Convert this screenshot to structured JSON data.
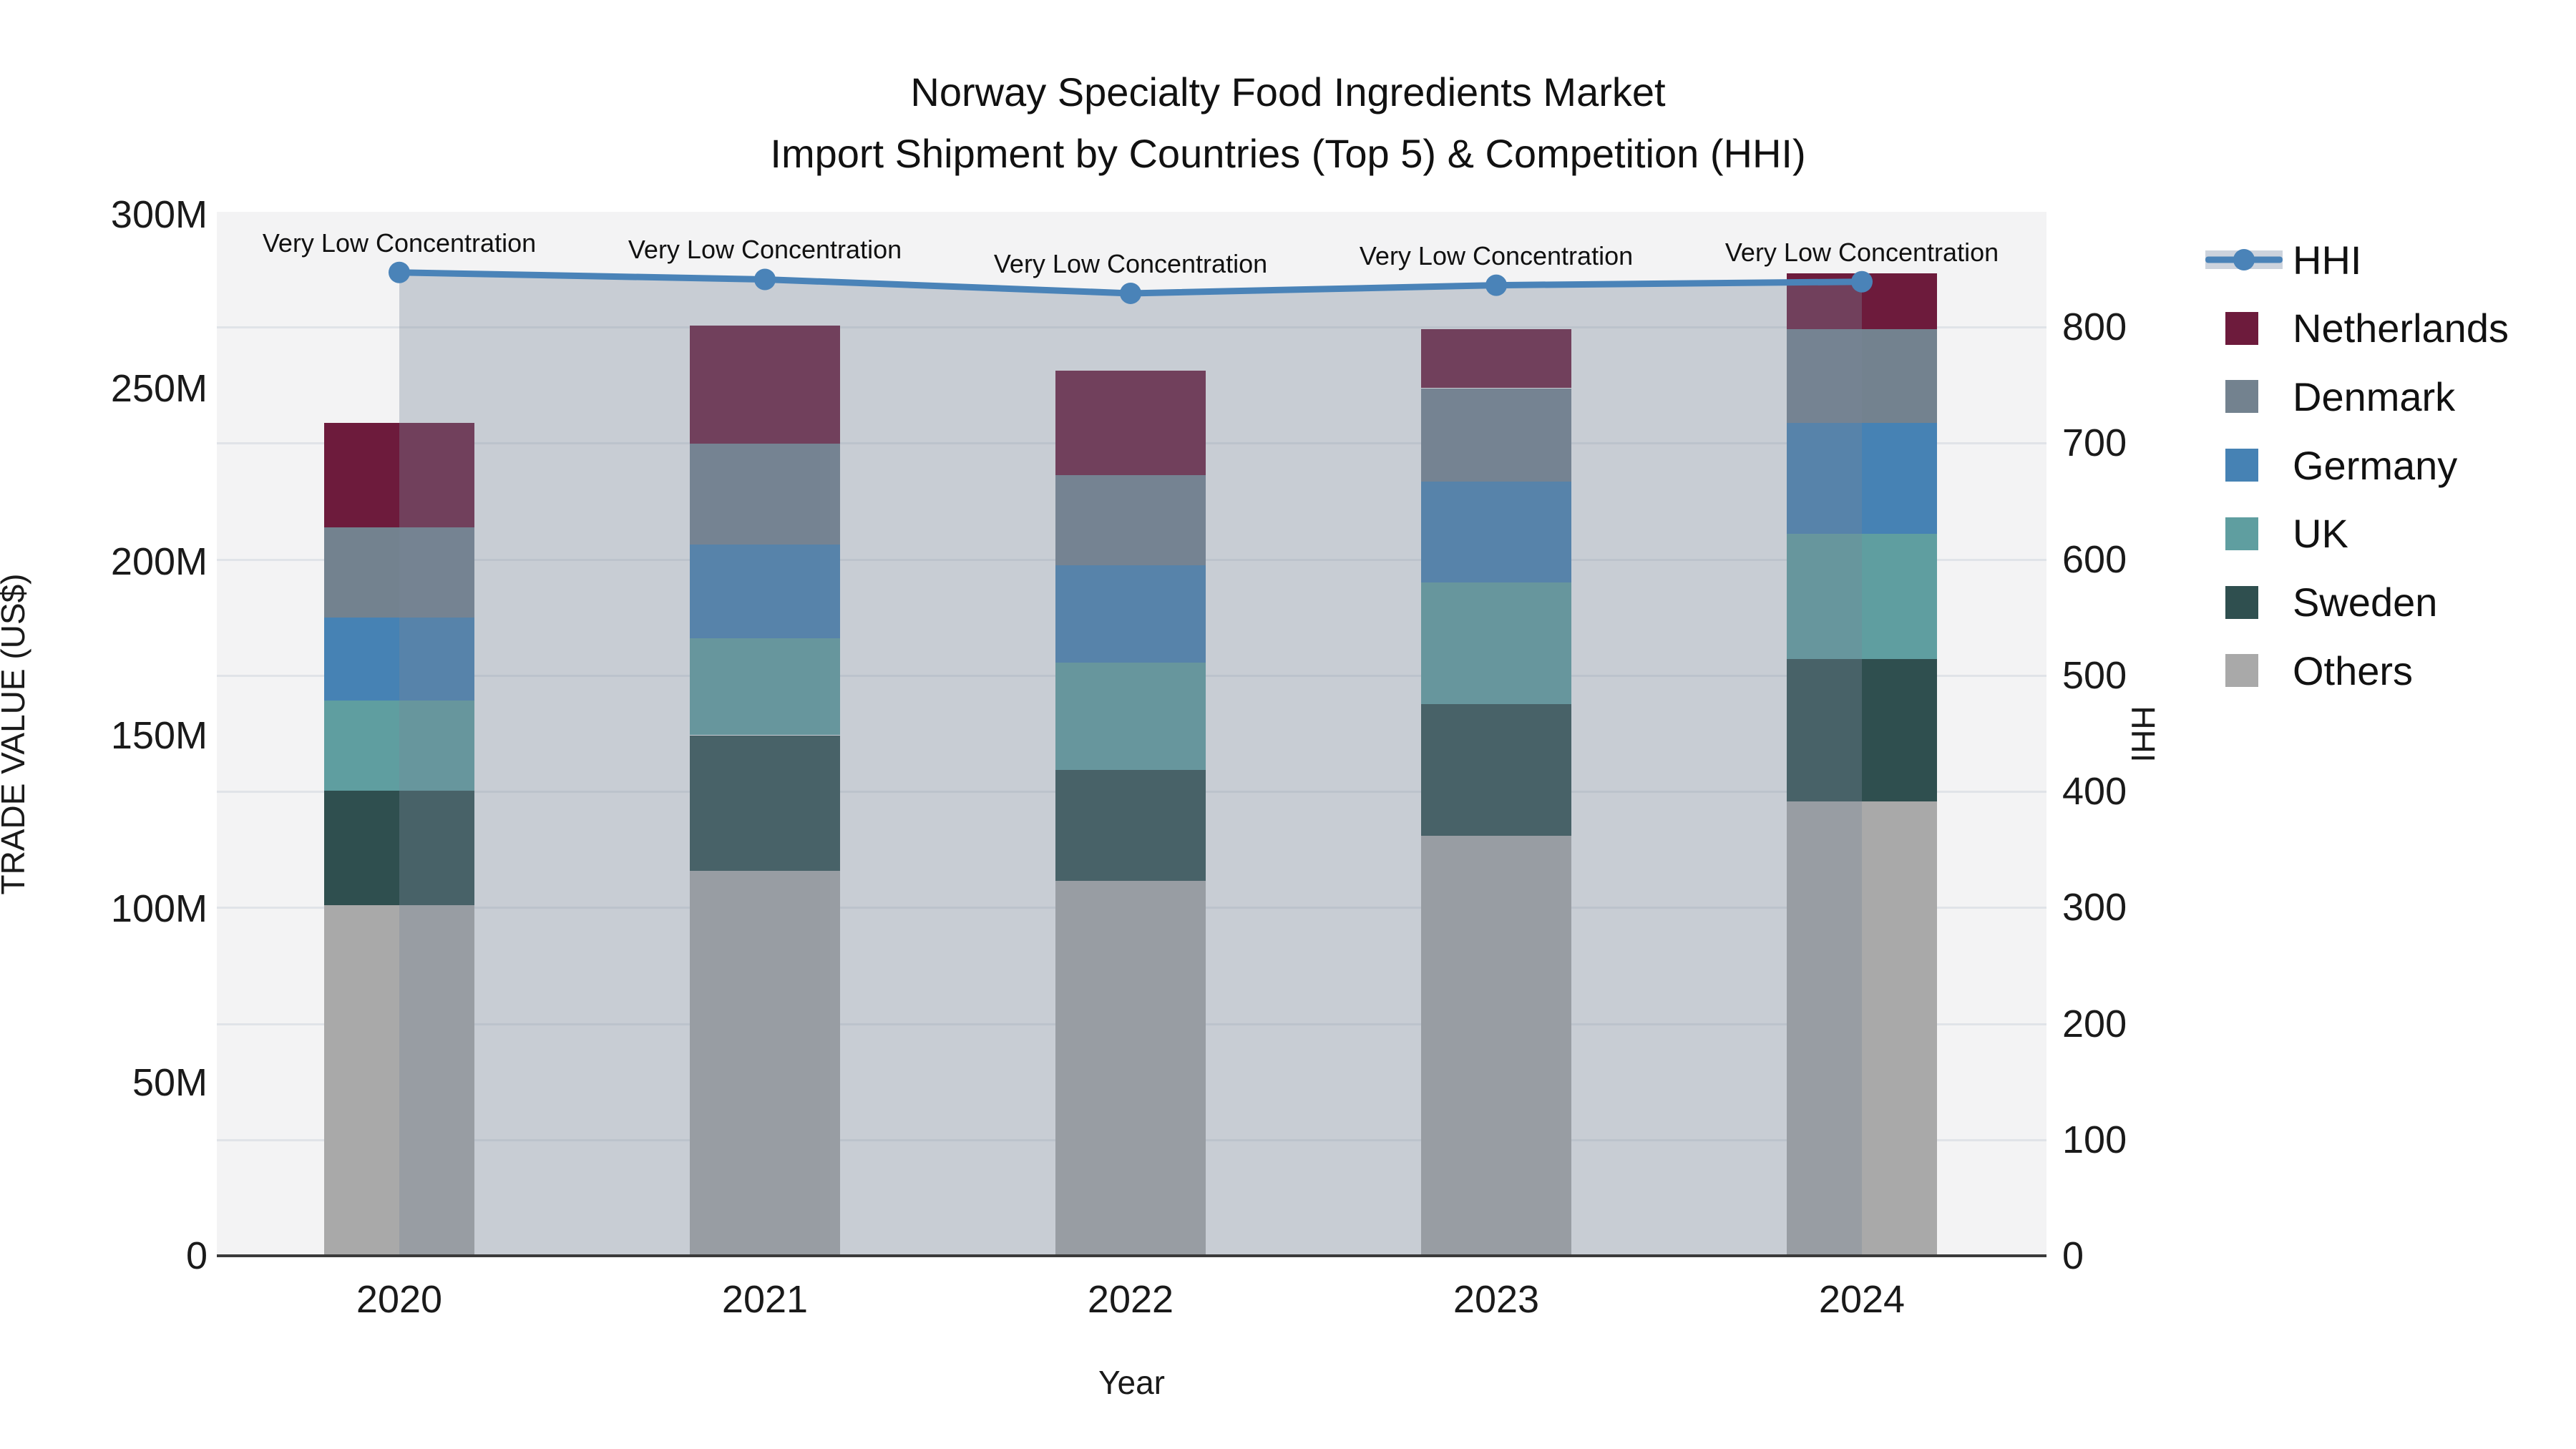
{
  "title": {
    "line1": "Norway Specialty Food Ingredients Market",
    "line2": "Import Shipment by Countries (Top 5) & Competition (HHI)"
  },
  "chart_data": {
    "type": "combo_stacked_bar_line",
    "categories": [
      "2020",
      "2021",
      "2022",
      "2023",
      "2024"
    ],
    "xlabel": "Year",
    "ylabel_left": "TRADE VALUE (US$)",
    "ylabel_right": "HHI",
    "ylim_left_millions": [
      0,
      300
    ],
    "ylim_right": [
      0,
      900
    ],
    "grid": "horizontal, every 100 HHI units",
    "legend_position": "right",
    "y_left_ticks": [
      "0",
      "50M",
      "100M",
      "150M",
      "200M",
      "250M",
      "300M"
    ],
    "y_left_tick_values_millions": [
      0,
      50,
      100,
      150,
      200,
      250,
      300
    ],
    "y_right_ticks": [
      "0",
      "100",
      "200",
      "300",
      "400",
      "500",
      "600",
      "700",
      "800"
    ],
    "y_right_tick_values": [
      0,
      100,
      200,
      300,
      400,
      500,
      600,
      700,
      800
    ],
    "series": [
      {
        "name": "Netherlands",
        "color": "#6d1b3c",
        "values_millions": [
          30,
          34,
          30,
          17,
          16
        ]
      },
      {
        "name": "Denmark",
        "color": "#73828f",
        "values_millions": [
          26,
          29,
          26,
          27,
          27
        ]
      },
      {
        "name": "Germany",
        "color": "#4682b4",
        "values_millions": [
          24,
          27,
          28,
          29,
          32
        ]
      },
      {
        "name": "UK",
        "color": "#5f9ea0",
        "values_millions": [
          26,
          28,
          31,
          35,
          36
        ]
      },
      {
        "name": "Sweden",
        "color": "#2f4f4f",
        "values_millions": [
          33,
          39,
          32,
          38,
          41
        ]
      },
      {
        "name": "Others",
        "color": "#a9a9a9",
        "values_millions": [
          101,
          111,
          108,
          121,
          131
        ]
      }
    ],
    "stack_totals_millions": [
      240,
      268,
      255,
      267,
      283
    ],
    "hhi": {
      "name": "HHI",
      "line_color": "#4a83b8",
      "area_fill": "rgba(119,136,153,0.35)",
      "values": [
        847,
        841,
        829,
        836,
        839
      ]
    },
    "annotations": [
      "Very Low Concentration",
      "Very Low Concentration",
      "Very Low Concentration",
      "Very Low Concentration",
      "Very Low Concentration"
    ],
    "legend": {
      "items": [
        {
          "label": "HHI",
          "type": "line"
        },
        {
          "label": "Netherlands",
          "type": "swatch",
          "color": "#6d1b3c"
        },
        {
          "label": "Denmark",
          "type": "swatch",
          "color": "#73828f"
        },
        {
          "label": "Germany",
          "type": "swatch",
          "color": "#4682b4"
        },
        {
          "label": "UK",
          "type": "swatch",
          "color": "#5f9ea0"
        },
        {
          "label": "Sweden",
          "type": "swatch",
          "color": "#2f4f4f"
        },
        {
          "label": "Others",
          "type": "swatch",
          "color": "#a9a9a9"
        }
      ]
    },
    "plot_bg_color": "#f3f3f4",
    "gridline_color": "#e0e3e8"
  }
}
